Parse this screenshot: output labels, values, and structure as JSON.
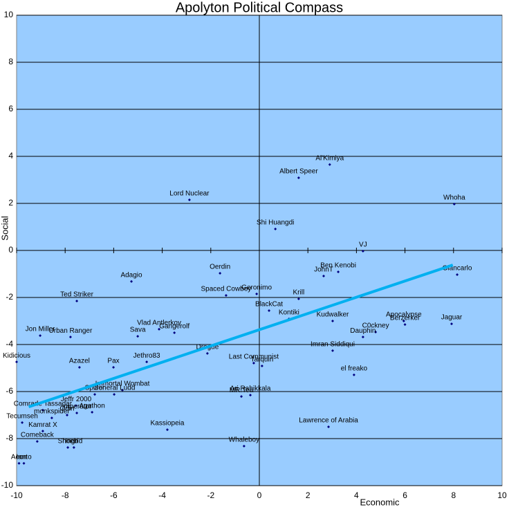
{
  "chart_data": {
    "type": "scatter",
    "title": "Apolyton Political Compass",
    "x_label": "Economic",
    "y_label": "Social",
    "xlim": [
      -10,
      10
    ],
    "ylim": [
      -10,
      10
    ],
    "xticks": [
      -10,
      -8,
      -6,
      -4,
      -2,
      0,
      2,
      4,
      6,
      8,
      10
    ],
    "yticks": [
      -10,
      -8,
      -6,
      -4,
      -2,
      0,
      2,
      4,
      6,
      8,
      10
    ],
    "grid": true,
    "background": "#99ccff",
    "color": "#000080",
    "point_labels": [
      "Al'Kimiya",
      "Albert Speer",
      "Lord Nuclear",
      "Whoha",
      "Shi Huangdi",
      "VJ",
      "Ben Kenobi",
      "JohnT",
      "Giancarlo",
      "Adagio",
      "Oerdin",
      "Ted Striker",
      "Spaced Cowboy",
      "Geronimo",
      "Krill",
      "BlackCat",
      "Kontiki",
      "Kudwalker",
      "Apocalypse",
      "Berzerker",
      "Jaguar",
      "C0ckney",
      "Dauphin",
      "Jon Miller",
      "Urban Ranger",
      "Vlad Antlerkov",
      "Gangerolf",
      "Sava",
      "Imran Siddiqui",
      "Drogue",
      "Kidicious",
      "Jethro83",
      "Azazel",
      "Pax",
      "Last Communist",
      "Tarquin",
      "el freako",
      "Immortal Wombat",
      "General Ludd",
      "Spiffor",
      "Ari Rahikkala",
      "MR.Tea",
      "Comrade Tassadar",
      "Jeffr 2000",
      "Imperator",
      "Agathon",
      "Odin",
      "Tecumseh",
      "monkspider",
      "Kassiopeia",
      "Lawrence of Arabia",
      "Kamrat X",
      "Comeback",
      "Ingrid",
      "Shoeb",
      "Whaleboy",
      "Aeon",
      "Ianto"
    ],
    "x": [
      2.9,
      1.62,
      -2.88,
      8.03,
      0.66,
      4.27,
      3.25,
      2.65,
      8.15,
      -5.27,
      -1.62,
      -7.52,
      -1.37,
      -0.11,
      1.62,
      0.4,
      1.22,
      3.02,
      5.95,
      6.0,
      7.92,
      4.79,
      4.27,
      -9.03,
      -7.78,
      -4.13,
      -3.5,
      -5.01,
      3.02,
      -2.14,
      -10,
      -4.64,
      -7.41,
      -6.01,
      -0.23,
      0.11,
      3.9,
      -5.64,
      -5.98,
      -6.78,
      -0.37,
      -0.74,
      -8.92,
      -7.55,
      -7.52,
      -6.89,
      -7.92,
      -9.77,
      -8.55,
      -3.79,
      2.85,
      -8.92,
      -9.15,
      -7.64,
      -7.89,
      -0.63,
      -9.9,
      -9.7
    ],
    "values": [
      3.65,
      3.09,
      2.15,
      1.97,
      0.91,
      -0.03,
      -0.91,
      -1.09,
      -1.03,
      -1.32,
      -0.97,
      -2.15,
      -1.91,
      -1.85,
      -2.06,
      -2.56,
      -2.91,
      -3.0,
      -3.0,
      -3.15,
      -3.12,
      -3.47,
      -3.68,
      -3.62,
      -3.68,
      -3.35,
      -3.5,
      -3.65,
      -4.26,
      -4.38,
      -4.74,
      -4.74,
      -4.97,
      -4.97,
      -4.79,
      -4.91,
      -5.29,
      -5.94,
      -6.12,
      -6.12,
      -6.15,
      -6.21,
      -6.79,
      -6.6,
      -6.91,
      -6.88,
      -7.0,
      -7.32,
      -7.12,
      -7.62,
      -7.5,
      -7.68,
      -8.12,
      -8.38,
      -8.38,
      -8.32,
      -9.05,
      -9.05
    ],
    "trendline": {
      "x": [
        -9.5,
        7.97
      ],
      "y": [
        -6.65,
        -0.62
      ],
      "color": "#00b0f0"
    }
  }
}
